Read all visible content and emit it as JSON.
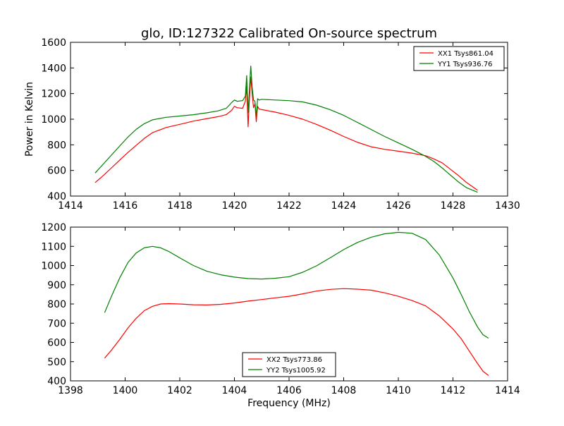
{
  "figure_title": "glo, ID:127322 Calibrated On-source spectrum",
  "colors": {
    "xx": "#ff0000",
    "yy": "#008000",
    "frame": "#000000",
    "background": "#ffffff"
  },
  "chart_data": [
    {
      "type": "line",
      "title": "glo, ID:127322 Calibrated On-source spectrum",
      "xlabel": "",
      "ylabel": "Power in Kelvin",
      "xlim": [
        1414,
        1430
      ],
      "ylim": [
        400,
        1600
      ],
      "xticks": [
        "1414",
        "1416",
        "1418",
        "1420",
        "1422",
        "1424",
        "1426",
        "1428",
        "1430"
      ],
      "yticks": [
        "400",
        "600",
        "800",
        "1000",
        "1200",
        "1400",
        "1600"
      ],
      "grid": false,
      "legend_position": "top-right",
      "series": [
        {
          "name": "XX1 Tsys861.04",
          "color": "#ff0000",
          "x": [
            1414.9,
            1415.2,
            1415.5,
            1415.8,
            1416.1,
            1416.4,
            1416.7,
            1417.0,
            1417.5,
            1418.0,
            1418.5,
            1419.0,
            1419.4,
            1419.7,
            1419.9,
            1420.0,
            1420.1,
            1420.3,
            1420.4,
            1420.45,
            1420.5,
            1420.55,
            1420.6,
            1420.65,
            1420.7,
            1420.75,
            1420.8,
            1420.85,
            1420.9,
            1421.0,
            1421.5,
            1422.0,
            1422.5,
            1423.0,
            1423.5,
            1424.0,
            1424.5,
            1425.0,
            1425.5,
            1426.0,
            1426.5,
            1427.0,
            1427.3,
            1427.6,
            1427.9,
            1428.2,
            1428.5,
            1428.9
          ],
          "y": [
            505,
            560,
            620,
            680,
            740,
            795,
            850,
            895,
            935,
            960,
            985,
            1005,
            1020,
            1035,
            1070,
            1100,
            1090,
            1085,
            1140,
            1260,
            940,
            1160,
            1330,
            1200,
            1090,
            1120,
            980,
            1100,
            1080,
            1075,
            1055,
            1030,
            1000,
            960,
            915,
            865,
            820,
            785,
            765,
            750,
            735,
            715,
            690,
            660,
            610,
            560,
            505,
            445
          ]
        },
        {
          "name": "YY1 Tsys936.76",
          "color": "#008000",
          "x": [
            1414.9,
            1415.2,
            1415.5,
            1415.8,
            1416.1,
            1416.4,
            1416.7,
            1417.0,
            1417.5,
            1418.0,
            1418.5,
            1419.0,
            1419.4,
            1419.7,
            1419.9,
            1420.0,
            1420.1,
            1420.3,
            1420.4,
            1420.45,
            1420.5,
            1420.55,
            1420.6,
            1420.65,
            1420.7,
            1420.75,
            1420.8,
            1420.85,
            1420.9,
            1421.0,
            1421.5,
            1422.0,
            1422.5,
            1423.0,
            1423.5,
            1424.0,
            1424.5,
            1425.0,
            1425.5,
            1426.0,
            1426.5,
            1427.0,
            1427.3,
            1427.6,
            1427.9,
            1428.2,
            1428.5,
            1428.9
          ],
          "y": [
            580,
            650,
            720,
            790,
            860,
            920,
            965,
            995,
            1015,
            1025,
            1035,
            1050,
            1065,
            1085,
            1130,
            1150,
            1140,
            1145,
            1180,
            1340,
            1050,
            1230,
            1415,
            1250,
            1150,
            1140,
            1020,
            1160,
            1150,
            1155,
            1150,
            1145,
            1135,
            1110,
            1075,
            1030,
            975,
            920,
            865,
            815,
            765,
            710,
            670,
            620,
            565,
            510,
            465,
            430
          ]
        }
      ]
    },
    {
      "type": "line",
      "title": "",
      "xlabel": "Frequency (MHz)",
      "ylabel": "",
      "xlim": [
        1398,
        1414
      ],
      "ylim": [
        400,
        1200
      ],
      "xticks": [
        "1398",
        "1400",
        "1402",
        "1404",
        "1406",
        "1408",
        "1410",
        "1412",
        "1414"
      ],
      "yticks": [
        "400",
        "500",
        "600",
        "700",
        "800",
        "900",
        "1000",
        "1100",
        "1200"
      ],
      "grid": false,
      "legend_position": "bottom-center",
      "series": [
        {
          "name": "XX2 Tsys773.86",
          "color": "#ff0000",
          "x": [
            1399.25,
            1399.5,
            1399.8,
            1400.1,
            1400.4,
            1400.7,
            1401.0,
            1401.3,
            1401.6,
            1402.0,
            1402.5,
            1403.0,
            1403.5,
            1404.0,
            1404.5,
            1405.0,
            1405.5,
            1406.0,
            1406.5,
            1407.0,
            1407.5,
            1408.0,
            1408.5,
            1409.0,
            1409.5,
            1410.0,
            1410.5,
            1411.0,
            1411.5,
            1412.0,
            1412.3,
            1412.6,
            1412.9,
            1413.1,
            1413.3
          ],
          "y": [
            518,
            560,
            615,
            675,
            725,
            765,
            788,
            800,
            802,
            800,
            796,
            795,
            798,
            805,
            815,
            823,
            832,
            840,
            853,
            867,
            876,
            880,
            877,
            872,
            858,
            840,
            818,
            790,
            738,
            670,
            620,
            555,
            490,
            450,
            428
          ]
        },
        {
          "name": "YY2 Tsys1005.92",
          "color": "#008000",
          "x": [
            1399.25,
            1399.5,
            1399.8,
            1400.1,
            1400.4,
            1400.7,
            1401.0,
            1401.3,
            1401.6,
            1402.0,
            1402.5,
            1403.0,
            1403.5,
            1404.0,
            1404.5,
            1405.0,
            1405.5,
            1406.0,
            1406.5,
            1407.0,
            1407.5,
            1408.0,
            1408.5,
            1409.0,
            1409.5,
            1410.0,
            1410.5,
            1411.0,
            1411.5,
            1412.0,
            1412.3,
            1412.6,
            1412.9,
            1413.1,
            1413.3
          ],
          "y": [
            755,
            840,
            935,
            1015,
            1065,
            1092,
            1100,
            1092,
            1073,
            1040,
            1000,
            970,
            952,
            940,
            932,
            930,
            934,
            942,
            965,
            998,
            1040,
            1083,
            1120,
            1147,
            1165,
            1173,
            1168,
            1135,
            1055,
            935,
            850,
            760,
            680,
            640,
            622
          ]
        }
      ]
    }
  ]
}
